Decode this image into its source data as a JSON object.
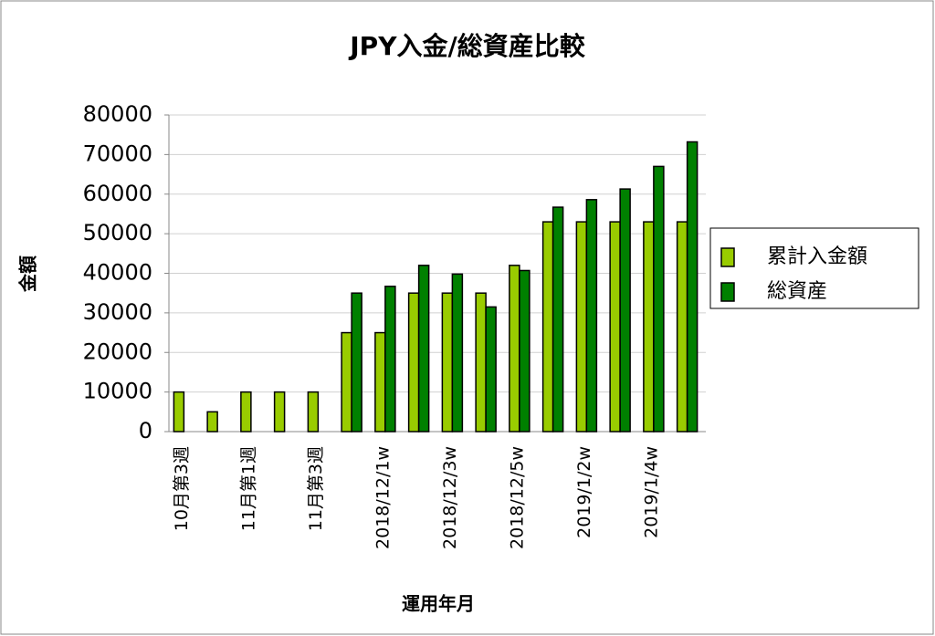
{
  "chart_data": {
    "type": "bar",
    "title": "JPY入金/総資産比較",
    "x_label": "運用年月",
    "y_label": "金額",
    "categories": [
      "10月第3週",
      null,
      "11月第1週",
      null,
      "11月第3週",
      null,
      "2018/12/1w",
      null,
      "2018/12/3w",
      null,
      "2018/12/5w",
      null,
      "2019/1/2w",
      null,
      "2019/1/4w",
      null
    ],
    "series": [
      {
        "name": "累計入金額",
        "color": "#99cc00",
        "values": [
          10000,
          5000,
          10000,
          10000,
          10000,
          25000,
          25000,
          35000,
          35000,
          35000,
          42000,
          53000,
          53000,
          53000,
          53000,
          53000
        ]
      },
      {
        "name": "総資産",
        "color": "#008000",
        "values": [
          0,
          0,
          0,
          0,
          0,
          35000,
          36700,
          42000,
          39800,
          31500,
          40700,
          56700,
          58600,
          61300,
          67000,
          73200
        ]
      }
    ],
    "ylim": [
      0,
      80000
    ],
    "yticks": [
      0,
      10000,
      20000,
      30000,
      40000,
      50000,
      60000,
      70000,
      80000
    ],
    "grid": true,
    "legend": "right"
  }
}
